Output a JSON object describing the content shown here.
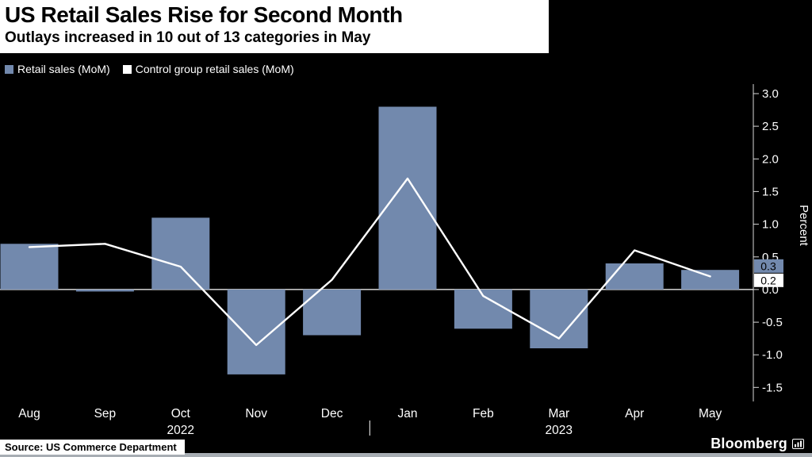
{
  "chart_data": {
    "type": "bar+line",
    "title": "US Retail Sales Rise for Second Month",
    "subtitle": "Outlays increased in 10 out of 13 categories in May",
    "source_note": "Source: US Commerce Department",
    "background": "#000000",
    "categories": [
      "Aug",
      "Sep",
      "Oct",
      "Nov",
      "Dec",
      "Jan",
      "Feb",
      "Mar",
      "Apr",
      "May"
    ],
    "year_labels": [
      {
        "index": 2,
        "label": "2022"
      },
      {
        "index": 7,
        "label": "2023"
      }
    ],
    "year_divider_between": [
      4,
      5
    ],
    "series": [
      {
        "name": "Retail sales (MoM)",
        "type": "bar",
        "color": "#7289ad",
        "values": [
          0.7,
          -0.03,
          1.1,
          -1.3,
          -0.7,
          2.8,
          -0.6,
          -0.9,
          0.4,
          0.3
        ],
        "last_value_label": "0.3"
      },
      {
        "name": "Control group retail sales (MoM)",
        "type": "line",
        "color": "#ffffff",
        "values": [
          0.65,
          0.7,
          0.35,
          -0.85,
          0.15,
          1.7,
          -0.1,
          -0.75,
          0.6,
          0.2
        ],
        "last_value_label": "0.2"
      }
    ],
    "ylabel": "Percent",
    "ylim": [
      -1.5,
      3.0
    ],
    "ytick_labels": [
      "3.0",
      "2.5",
      "2.0",
      "1.5",
      "1.0",
      "0.5",
      "0.0",
      "-0.5",
      "-1.0",
      "-1.5"
    ],
    "grid": false,
    "legend_position": "top-left",
    "axis_side": "right"
  },
  "footer": {
    "brand": "Bloomberg"
  }
}
